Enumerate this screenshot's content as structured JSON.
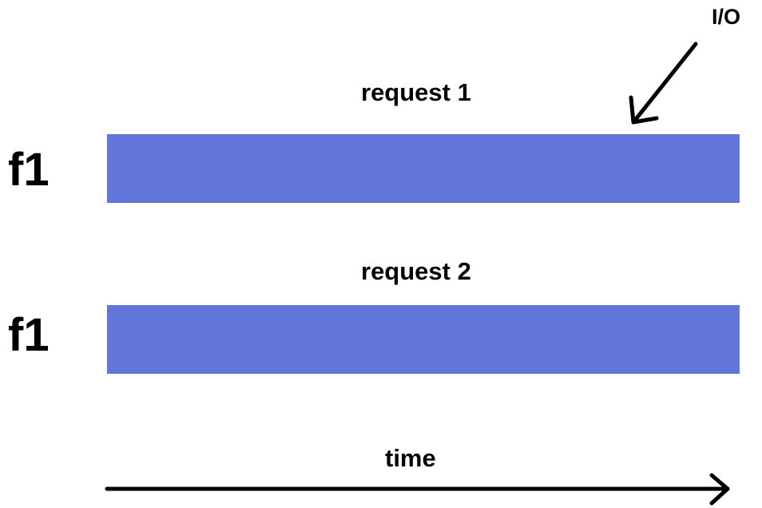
{
  "rows": [
    {
      "function_label": "f1",
      "request_label": "request 1"
    },
    {
      "function_label": "f1",
      "request_label": "request 2"
    }
  ],
  "io_label": "I/O",
  "time_label": "time",
  "colors": {
    "bar": "#6276d9",
    "ink": "#000000",
    "background": "#ffffff"
  }
}
